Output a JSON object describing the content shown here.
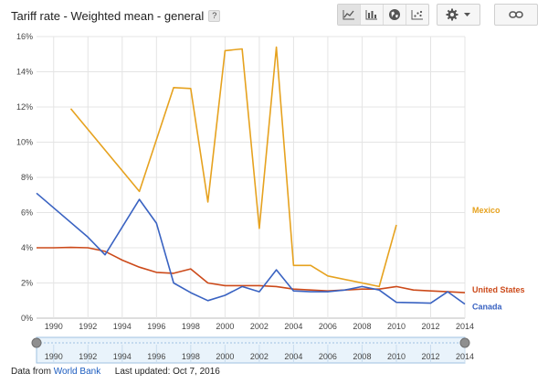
{
  "title": "Tariff rate - Weighted mean - general",
  "help_label": "?",
  "toolbar": {
    "view_buttons": [
      "line-chart-icon",
      "bar-chart-icon",
      "map-globe-icon",
      "scatter-chart-icon"
    ],
    "settings_icon": "gear-icon",
    "settings_menu_icon": "caret-down-icon",
    "link_icon": "link-icon"
  },
  "colors": {
    "mexico": "#e6a21f",
    "united_states": "#cc4a1a",
    "canada": "#3a63c2",
    "grid": "#e4e4e4",
    "axis_text": "#444444",
    "range_fill": "#e9f3fb",
    "range_border": "#9fc1e2",
    "handle": "#8f8f8f"
  },
  "footer": {
    "prefix": "Data from",
    "source": "World Bank",
    "updated": "Last updated: Oct 7, 2016"
  },
  "chart_data": {
    "type": "line",
    "title": "Tariff rate - Weighted mean - general",
    "xlim": [
      1989,
      2014
    ],
    "ylim": [
      0,
      16
    ],
    "y_ticks": [
      0,
      2,
      4,
      6,
      8,
      10,
      12,
      14,
      16
    ],
    "y_tick_labels": [
      "0%",
      "2%",
      "4%",
      "6%",
      "8%",
      "10%",
      "12%",
      "14%",
      "16%"
    ],
    "x_ticks": [
      1990,
      1992,
      1994,
      1996,
      1998,
      2000,
      2002,
      2004,
      2006,
      2008,
      2010,
      2012,
      2014
    ],
    "x_tick_labels": [
      "1990",
      "1992",
      "1994",
      "1996",
      "1998",
      "2000",
      "2002",
      "2004",
      "2006",
      "2008",
      "2010",
      "2012",
      "2014"
    ],
    "grid": true,
    "legend": "right end labels",
    "series": [
      {
        "name": "Mexico",
        "color_key": "mexico",
        "x": [
          1991,
          1995,
          1997,
          1998,
          1999,
          2000,
          2001,
          2002,
          2003,
          2004,
          2005,
          2006,
          2009,
          2010
        ],
        "y": [
          11.9,
          7.2,
          13.1,
          13.05,
          6.6,
          15.2,
          15.3,
          5.1,
          15.4,
          3.0,
          3.0,
          2.4,
          1.8,
          5.3
        ]
      },
      {
        "name": "United States",
        "color_key": "united_states",
        "x": [
          1989,
          1990,
          1991,
          1992,
          1993,
          1994,
          1995,
          1996,
          1997,
          1998,
          1999,
          2000,
          2001,
          2002,
          2003,
          2004,
          2005,
          2006,
          2007,
          2008,
          2009,
          2010,
          2011,
          2012,
          2013,
          2014
        ],
        "y": [
          4.0,
          4.0,
          4.02,
          4.0,
          3.8,
          3.3,
          2.9,
          2.6,
          2.55,
          2.8,
          2.0,
          1.85,
          1.85,
          1.85,
          1.8,
          1.65,
          1.6,
          1.55,
          1.6,
          1.65,
          1.65,
          1.8,
          1.6,
          1.55,
          1.5,
          1.45
        ]
      },
      {
        "name": "Canada",
        "color_key": "canada",
        "x": [
          1989,
          1992,
          1993,
          1995,
          1996,
          1997,
          1998,
          1999,
          2000,
          2001,
          2002,
          2003,
          2004,
          2005,
          2006,
          2007,
          2008,
          2009,
          2010,
          2011,
          2012,
          2013,
          2014
        ],
        "y": [
          7.1,
          4.6,
          3.6,
          6.75,
          5.4,
          2.0,
          1.45,
          1.0,
          1.3,
          1.8,
          1.5,
          2.75,
          1.55,
          1.5,
          1.5,
          1.6,
          1.8,
          1.6,
          0.9,
          0.88,
          0.85,
          1.5,
          0.8
        ]
      }
    ]
  }
}
